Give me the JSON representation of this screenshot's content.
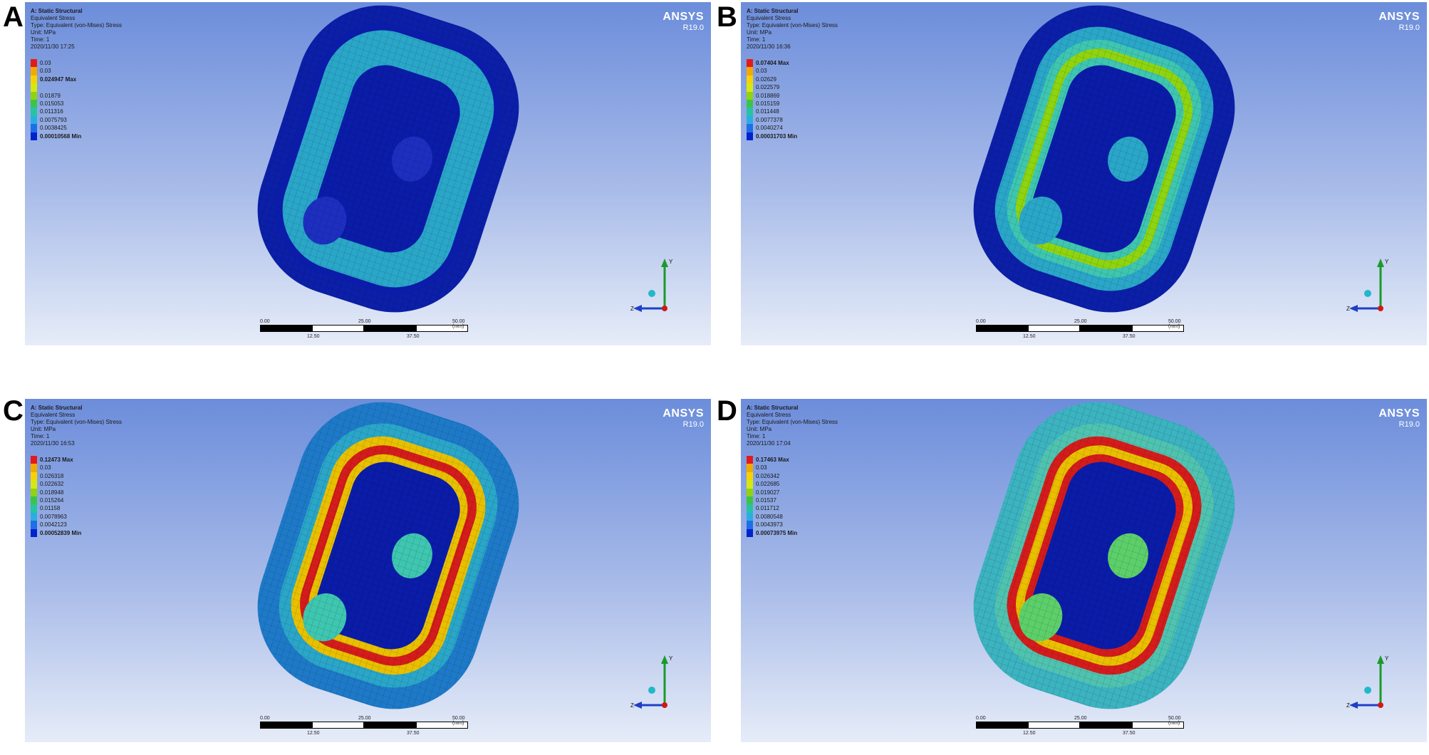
{
  "figure": {
    "panels": [
      {
        "letter": "A",
        "info": {
          "title": "A: Static Structural",
          "result": "Equivalent Stress",
          "type": "Type: Equivalent (von-Mises) Stress",
          "unit": "Unit: MPa",
          "time": "Time: 1",
          "date": "2020/11/30 17:25"
        },
        "legend": [
          "0.03",
          "0.03",
          "0.024947 Max",
          "",
          "0.01879",
          "0.015053",
          "0.011316",
          "0.0075793",
          "0.0038425",
          "0.00010568 Min"
        ],
        "stress_max": "0.024947",
        "stress_min": "0.00010568"
      },
      {
        "letter": "B",
        "info": {
          "title": "A: Static Structural",
          "result": "Equivalent Stress",
          "type": "Type: Equivalent (von-Mises) Stress",
          "unit": "Unit: MPa",
          "time": "Time: 1",
          "date": "2020/11/30 16:36"
        },
        "legend": [
          "0.07404 Max",
          "0.03",
          "0.02629",
          "0.022579",
          "0.018869",
          "0.015159",
          "0.011448",
          "0.0077378",
          "0.0040274",
          "0.00031703 Min"
        ],
        "stress_max": "0.07404",
        "stress_min": "0.00031703"
      },
      {
        "letter": "C",
        "info": {
          "title": "A: Static Structural",
          "result": "Equivalent Stress",
          "type": "Type: Equivalent (von-Mises) Stress",
          "unit": "Unit: MPa",
          "time": "Time: 1",
          "date": "2020/11/30 16:53"
        },
        "legend": [
          "0.12473 Max",
          "0.03",
          "0.026318",
          "0.022632",
          "0.018948",
          "0.015264",
          "0.01158",
          "0.0078963",
          "0.0042123",
          "0.00052839 Min"
        ],
        "stress_max": "0.12473",
        "stress_min": "0.00052839"
      },
      {
        "letter": "D",
        "info": {
          "title": "A: Static Structural",
          "result": "Equivalent Stress",
          "type": "Type: Equivalent (von-Mises) Stress",
          "unit": "Unit: MPa",
          "time": "Time: 1",
          "date": "2020/11/30 17:04"
        },
        "legend": [
          "0.17463 Max",
          "0.03",
          "0.026342",
          "0.022685",
          "0.019027",
          "0.01537",
          "0.011712",
          "0.0080548",
          "0.0043973",
          "0.00073975 Min"
        ],
        "stress_max": "0.17463",
        "stress_min": "0.00073975"
      }
    ],
    "brand": "ANSYS",
    "version": "R19.0",
    "scale_labels": {
      "a": "0.00",
      "b": "12.50",
      "c": "25.00",
      "d": "37.50",
      "e": "50.00 (mm)"
    },
    "axis_labels": {
      "y": "Y",
      "z": "Z"
    },
    "legend_colors": [
      "#e31a1c",
      "#f2a900",
      "#f5d300",
      "#d7e80d",
      "#8fd40f",
      "#3cc44a",
      "#27c3a3",
      "#2aaee0",
      "#1f6ee8",
      "#0022cc"
    ],
    "contour_colors": {
      "min": "#0a1ca8",
      "low": "#2aa6c8",
      "mid_low": "#3ec6b0",
      "mid": "#8fd40f",
      "mid_high": "#e8c000",
      "max": "#d41c1c"
    }
  }
}
